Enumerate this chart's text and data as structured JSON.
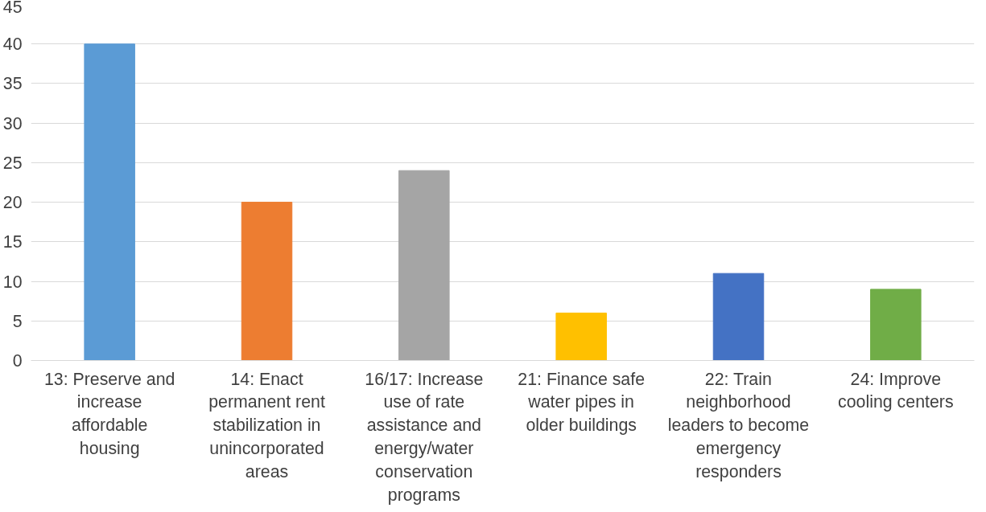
{
  "chart_data": {
    "type": "bar",
    "categories": [
      "13: Preserve and increase affordable housing",
      "14: Enact permanent rent stabilization in unincorporated areas",
      "16/17: Increase use of rate assistance and energy/water conservation programs",
      "21: Finance safe water pipes in older buildings",
      "22: Train neighborhood leaders to become emergency responders",
      "24: Improve cooling centers"
    ],
    "values": [
      40,
      20,
      24,
      6,
      11,
      9
    ],
    "colors": [
      "#5b9bd5",
      "#ed7d31",
      "#a5a5a5",
      "#ffc000",
      "#4472c4",
      "#70ad47"
    ],
    "ylim": [
      0,
      45
    ],
    "yticks": [
      0,
      5,
      10,
      15,
      20,
      25,
      30,
      35,
      40,
      45
    ],
    "grid": "y"
  }
}
